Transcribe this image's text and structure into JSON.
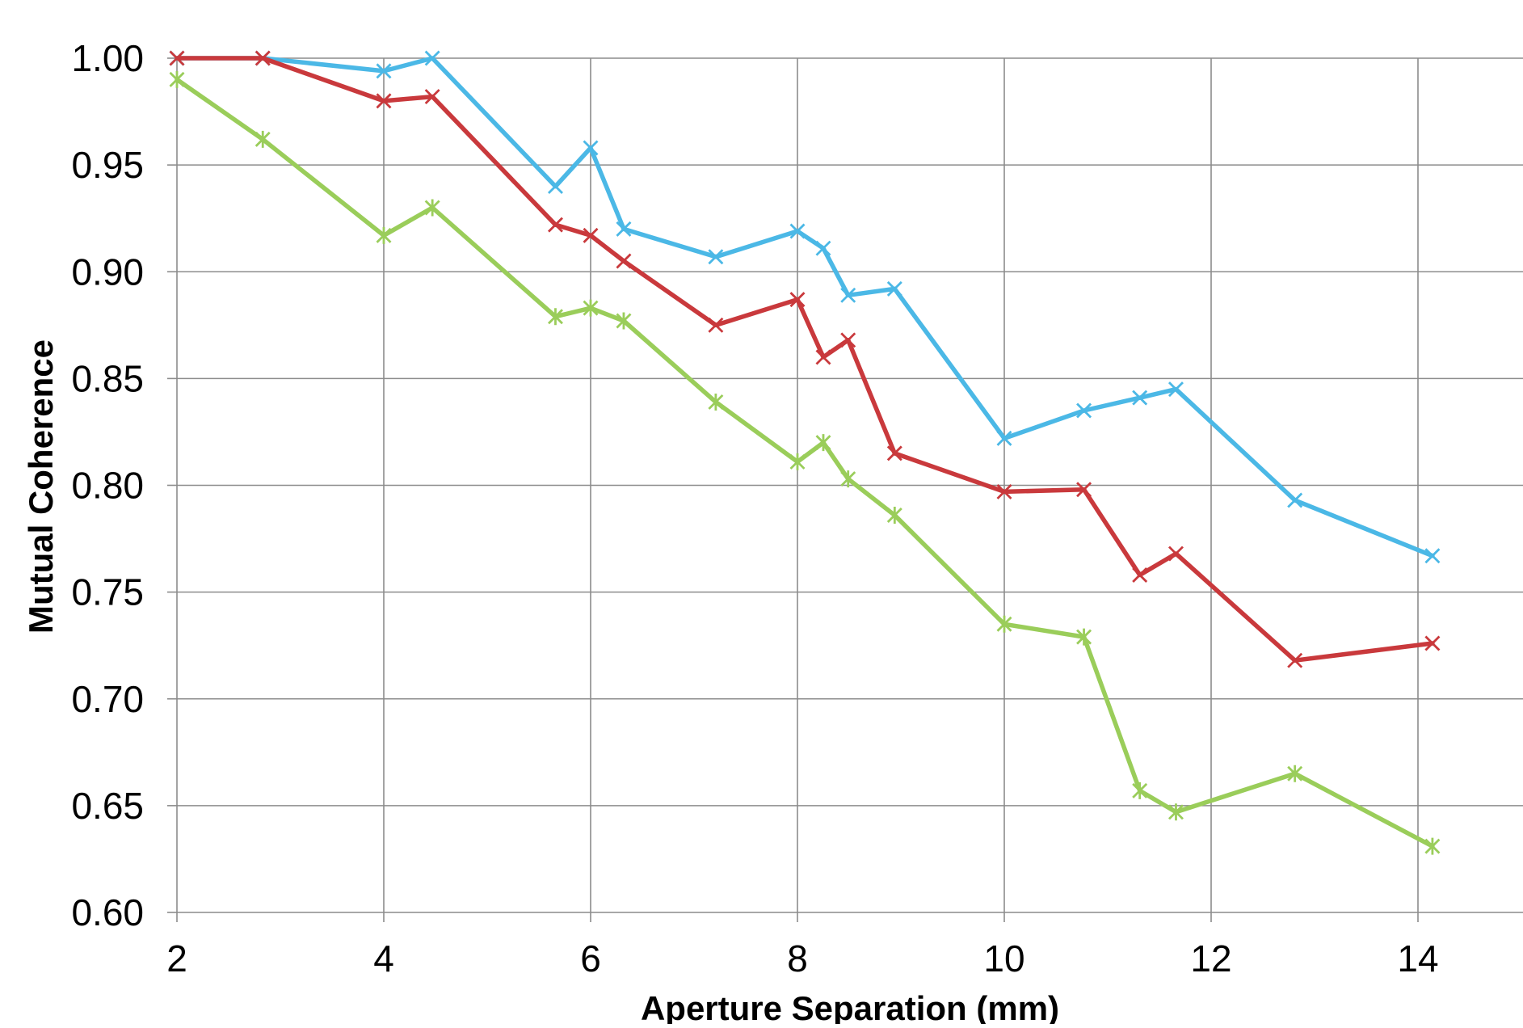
{
  "chart_data": {
    "type": "line",
    "title": "",
    "xlabel": "Aperture Separation (mm)",
    "ylabel": "Mutual Coherence",
    "xlim": [
      2,
      15
    ],
    "ylim": [
      0.6,
      1.0
    ],
    "x_ticks": [
      "2",
      "4",
      "6",
      "8",
      "10",
      "12",
      "14"
    ],
    "x_tick_values": [
      2,
      4,
      6,
      8,
      10,
      12,
      14
    ],
    "y_ticks": [
      "0.60",
      "0.65",
      "0.70",
      "0.75",
      "0.80",
      "0.85",
      "0.90",
      "0.95",
      "1.00"
    ],
    "y_tick_values": [
      0.6,
      0.65,
      0.7,
      0.75,
      0.8,
      0.85,
      0.9,
      0.95,
      1.0
    ],
    "grid": true,
    "legend": "none",
    "series": [
      {
        "color": "#4BB8E6",
        "marker": "x",
        "points": [
          [
            2.0,
            1.0
          ],
          [
            2.83,
            1.0
          ],
          [
            4.0,
            0.994
          ],
          [
            4.47,
            1.0
          ],
          [
            5.66,
            0.94
          ],
          [
            6.0,
            0.958
          ],
          [
            6.32,
            0.92
          ],
          [
            7.21,
            0.907
          ],
          [
            8.0,
            0.919
          ],
          [
            8.25,
            0.911
          ],
          [
            8.49,
            0.889
          ],
          [
            8.94,
            0.892
          ],
          [
            10.0,
            0.822
          ],
          [
            10.77,
            0.835
          ],
          [
            11.31,
            0.841
          ],
          [
            11.66,
            0.845
          ],
          [
            12.81,
            0.793
          ],
          [
            14.14,
            0.767
          ]
        ]
      },
      {
        "color": "#C9393C",
        "marker": "x",
        "points": [
          [
            2.0,
            1.0
          ],
          [
            2.83,
            1.0
          ],
          [
            4.0,
            0.98
          ],
          [
            4.47,
            0.982
          ],
          [
            5.66,
            0.922
          ],
          [
            6.0,
            0.917
          ],
          [
            6.32,
            0.905
          ],
          [
            7.21,
            0.875
          ],
          [
            8.0,
            0.887
          ],
          [
            8.25,
            0.86
          ],
          [
            8.49,
            0.868
          ],
          [
            8.94,
            0.815
          ],
          [
            10.0,
            0.797
          ],
          [
            10.77,
            0.798
          ],
          [
            11.31,
            0.758
          ],
          [
            11.66,
            0.768
          ],
          [
            12.81,
            0.718
          ],
          [
            14.14,
            0.726
          ]
        ]
      },
      {
        "color": "#9ACD5A",
        "marker": "star",
        "points": [
          [
            2.0,
            0.99
          ],
          [
            2.83,
            0.962
          ],
          [
            4.0,
            0.917
          ],
          [
            4.47,
            0.93
          ],
          [
            5.66,
            0.879
          ],
          [
            6.0,
            0.883
          ],
          [
            6.32,
            0.877
          ],
          [
            7.21,
            0.839
          ],
          [
            8.0,
            0.811
          ],
          [
            8.25,
            0.82
          ],
          [
            8.49,
            0.803
          ],
          [
            8.94,
            0.786
          ],
          [
            10.0,
            0.735
          ],
          [
            10.77,
            0.729
          ],
          [
            11.31,
            0.657
          ],
          [
            11.66,
            0.647
          ],
          [
            12.81,
            0.665
          ],
          [
            14.14,
            0.631
          ]
        ]
      }
    ]
  }
}
